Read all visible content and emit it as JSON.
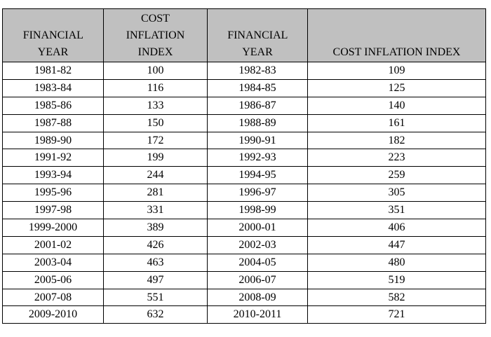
{
  "table": {
    "header": [
      "FINANCIAL YEAR",
      "COST INFLATION INDEX",
      "FINANCIAL YEAR",
      "COST INFLATION INDEX"
    ],
    "rows": [
      [
        "1981-82",
        100,
        "1982-83",
        109
      ],
      [
        "1983-84",
        116,
        "1984-85",
        125
      ],
      [
        "1985-86",
        133,
        "1986-87",
        140
      ],
      [
        "1987-88",
        150,
        "1988-89",
        161
      ],
      [
        "1989-90",
        172,
        "1990-91",
        182
      ],
      [
        "1991-92",
        199,
        "1992-93",
        223
      ],
      [
        "1993-94",
        244,
        "1994-95",
        259
      ],
      [
        "1995-96",
        281,
        "1996-97",
        305
      ],
      [
        "1997-98",
        331,
        "1998-99",
        351
      ],
      [
        "1999-2000",
        389,
        "2000-01",
        406
      ],
      [
        "2001-02",
        426,
        "2002-03",
        447
      ],
      [
        "2003-04",
        463,
        "2004-05",
        480
      ],
      [
        "2005-06",
        497,
        "2006-07",
        519
      ],
      [
        "2007-08",
        551,
        "2008-09",
        582
      ],
      [
        "2009-2010",
        632,
        "2010-2011",
        721
      ]
    ]
  }
}
